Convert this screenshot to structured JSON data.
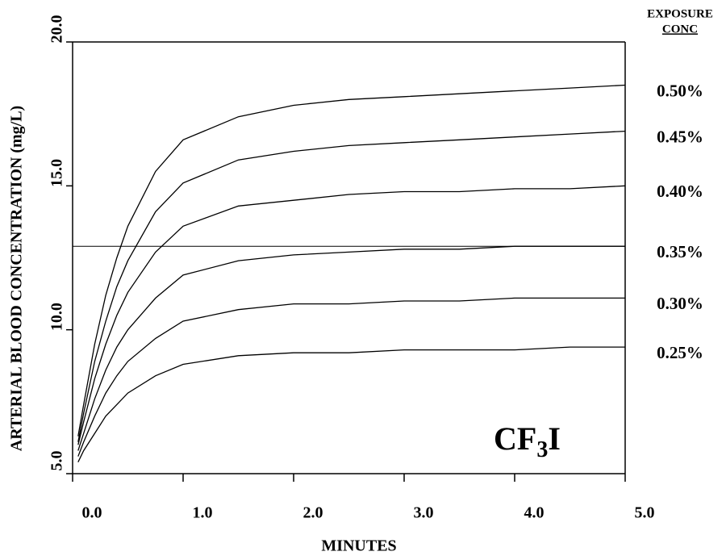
{
  "chart_data": {
    "type": "line",
    "xlabel": "MINUTES",
    "ylabel": "ARTERIAL BLOOD CONCENTRATION (mg/L)",
    "legend_title": [
      "EXPOSURE",
      "CONC"
    ],
    "annotation": [
      "CF",
      "3",
      "I"
    ],
    "hline": 12.9,
    "xlim": [
      0,
      5
    ],
    "ylim": [
      5,
      20
    ],
    "xticks": [
      {
        "value": 0,
        "label": "0.0"
      },
      {
        "value": 1,
        "label": "1.0"
      },
      {
        "value": 2,
        "label": "2.0"
      },
      {
        "value": 3,
        "label": "3.0"
      },
      {
        "value": 4,
        "label": "4.0"
      },
      {
        "value": 5,
        "label": "5.0"
      }
    ],
    "yticks": [
      {
        "value": 5,
        "label": "5.0"
      },
      {
        "value": 10,
        "label": "10.0"
      },
      {
        "value": 15,
        "label": "15.0"
      },
      {
        "value": 20,
        "label": "20.0"
      }
    ],
    "x": [
      0.05,
      0.1,
      0.2,
      0.3,
      0.4,
      0.5,
      0.75,
      1.0,
      1.5,
      2.0,
      2.5,
      3.0,
      3.5,
      4.0,
      4.5,
      5.0
    ],
    "series": [
      {
        "name": "0.50%",
        "color": "#000000",
        "values": [
          6.3,
          7.4,
          9.5,
          11.2,
          12.5,
          13.6,
          15.5,
          16.6,
          17.4,
          17.8,
          18.0,
          18.1,
          18.2,
          18.3,
          18.4,
          18.5
        ]
      },
      {
        "name": "0.45%",
        "color": "#000000",
        "values": [
          6.1,
          7.1,
          8.9,
          10.3,
          11.5,
          12.4,
          14.1,
          15.1,
          15.9,
          16.2,
          16.4,
          16.5,
          16.6,
          16.7,
          16.8,
          16.9
        ]
      },
      {
        "name": "0.40%",
        "color": "#000000",
        "values": [
          6.0,
          6.8,
          8.3,
          9.5,
          10.5,
          11.3,
          12.7,
          13.6,
          14.3,
          14.5,
          14.7,
          14.8,
          14.8,
          14.9,
          14.9,
          15.0
        ]
      },
      {
        "name": "0.35%",
        "color": "#000000",
        "values": [
          5.8,
          6.4,
          7.6,
          8.6,
          9.4,
          10.0,
          11.1,
          11.9,
          12.4,
          12.6,
          12.7,
          12.8,
          12.8,
          12.9,
          12.9,
          12.9
        ]
      },
      {
        "name": "0.30%",
        "color": "#000000",
        "values": [
          5.6,
          6.1,
          7.0,
          7.8,
          8.4,
          8.9,
          9.7,
          10.3,
          10.7,
          10.9,
          10.9,
          11.0,
          11.0,
          11.1,
          11.1,
          11.1
        ]
      },
      {
        "name": "0.25%",
        "color": "#000000",
        "values": [
          5.4,
          5.8,
          6.4,
          7.0,
          7.4,
          7.8,
          8.4,
          8.8,
          9.1,
          9.2,
          9.2,
          9.3,
          9.3,
          9.3,
          9.4,
          9.4
        ]
      }
    ]
  }
}
